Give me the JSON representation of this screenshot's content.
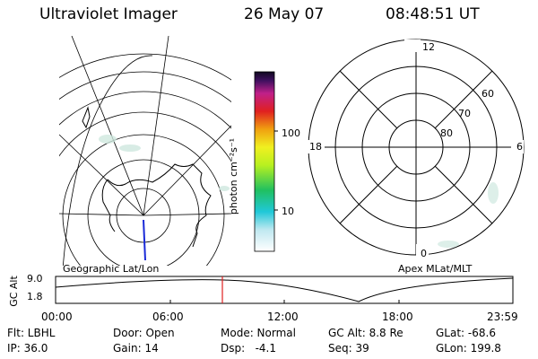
{
  "header": {
    "instrument": "Ultraviolet Imager",
    "date": "26 May 07",
    "time": "08:48:51 UT"
  },
  "panels": {
    "left_label": "Geographic Lat/Lon",
    "right_label": "Apex MLat/MLT"
  },
  "colorbar": {
    "unit_label": "photon cm⁻²s⁻¹",
    "tick_100": "100",
    "tick_10": "10"
  },
  "polar": {
    "mlt_12": "12",
    "mlt_18": "18",
    "mlt_6": "6",
    "mlt_0": "0",
    "lat_60": "60",
    "lat_70": "70",
    "lat_80": "80"
  },
  "alt_plot": {
    "ylabel": "GC Alt",
    "ytick_top": "9.0",
    "ytick_bottom": "1.8",
    "xticks": [
      "00:00",
      "06:00",
      "12:00",
      "18:00",
      "23:59"
    ]
  },
  "info": {
    "filter": "Flt: LBHL",
    "door": "Door: Open",
    "mode": "Mode: Normal",
    "gc_alt": "GC Alt: 8.8 Re",
    "glat": "GLat: -68.6",
    "ip": "IP: 36.0",
    "gain": "Gain: 14",
    "dsp": "Dsp:   -4.1",
    "seq": "Seq: 39",
    "glon": "GLon: 199.8"
  }
}
